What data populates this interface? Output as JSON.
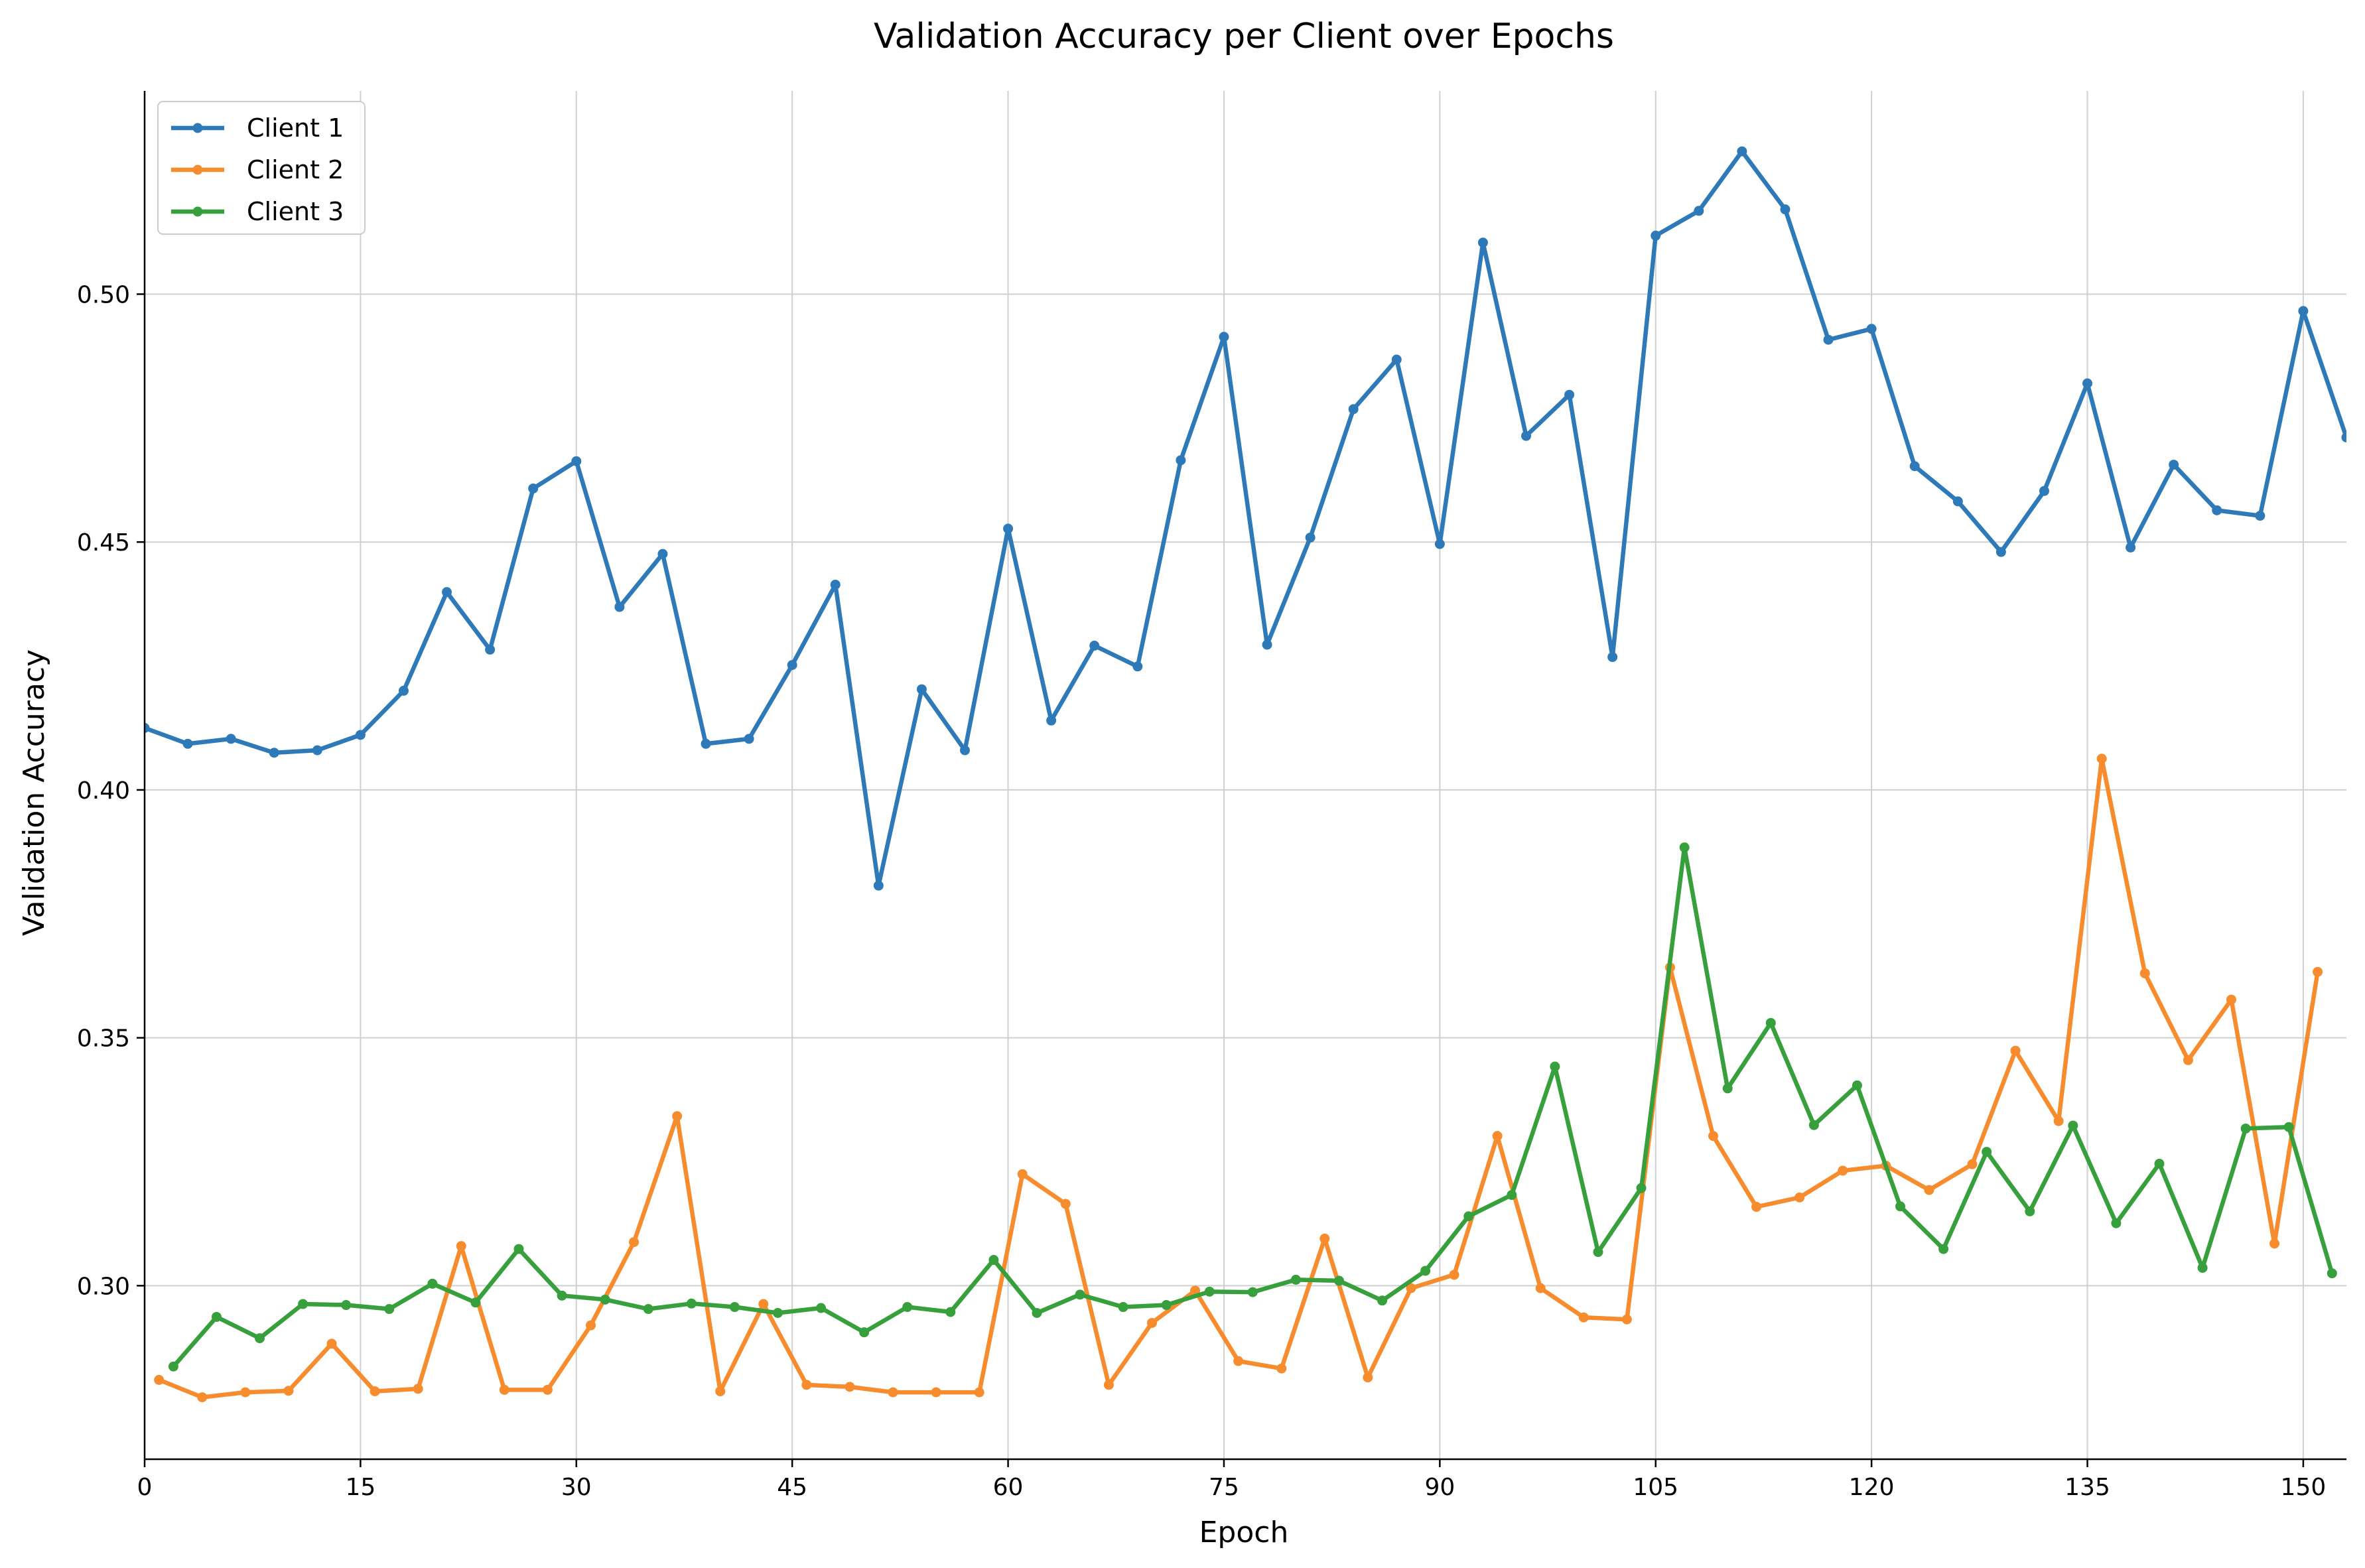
{
  "chart_data": {
    "type": "line",
    "title": "Validation Accuracy per Client over Epochs",
    "xlabel": "Epoch",
    "ylabel": "Validation Accuracy",
    "xlim": [
      0,
      153
    ],
    "ylim": [
      0.265,
      0.541
    ],
    "xticks": [
      0,
      15,
      30,
      45,
      60,
      75,
      90,
      105,
      120,
      135,
      150
    ],
    "yticks": [
      0.3,
      0.35,
      0.4,
      0.45,
      0.5
    ],
    "ytick_labels": [
      "0.30",
      "0.35",
      "0.40",
      "0.45",
      "0.50"
    ],
    "grid": true,
    "legend_position": "top-left",
    "series": [
      {
        "name": "Client 1",
        "color": "#2e7ab8",
        "x": [
          0,
          3,
          6,
          9,
          12,
          15,
          18,
          21,
          24,
          27,
          30,
          33,
          36,
          39,
          42,
          45,
          48,
          51,
          54,
          57,
          60,
          63,
          66,
          69,
          72,
          75,
          78,
          81,
          84,
          87,
          90,
          93,
          96,
          99,
          102,
          105,
          108,
          111,
          114,
          117,
          120,
          123,
          126,
          129,
          132,
          135,
          138,
          141,
          144,
          147,
          150,
          153
        ],
        "y": [
          0.4125,
          0.4093,
          0.4103,
          0.4075,
          0.408,
          0.4111,
          0.42,
          0.4399,
          0.4283,
          0.4608,
          0.4663,
          0.4369,
          0.4476,
          0.4093,
          0.4103,
          0.4252,
          0.4414,
          0.3807,
          0.4203,
          0.408,
          0.4527,
          0.414,
          0.4291,
          0.4249,
          0.4665,
          0.4914,
          0.4293,
          0.4509,
          0.4768,
          0.4868,
          0.4496,
          0.5104,
          0.4714,
          0.4797,
          0.4268,
          0.5118,
          0.5168,
          0.5288,
          0.5171,
          0.4908,
          0.493,
          0.4653,
          0.4582,
          0.448,
          0.4603,
          0.482,
          0.4489,
          0.4656,
          0.4564,
          0.4553,
          0.4966,
          0.4711
        ]
      },
      {
        "name": "Client 2",
        "color": "#f68c2d",
        "x": [
          1,
          4,
          7,
          10,
          13,
          16,
          19,
          22,
          25,
          28,
          31,
          34,
          37,
          40,
          43,
          46,
          49,
          52,
          55,
          58,
          61,
          64,
          67,
          70,
          73,
          76,
          79,
          82,
          85,
          88,
          91,
          94,
          97,
          100,
          103,
          106,
          109,
          112,
          115,
          118,
          121,
          124,
          127,
          130,
          133,
          136,
          139,
          142,
          145,
          148,
          151
        ],
        "y": [
          0.281,
          0.2775,
          0.2785,
          0.2788,
          0.2883,
          0.2787,
          0.2792,
          0.308,
          0.279,
          0.279,
          0.292,
          0.3088,
          0.3342,
          0.2787,
          0.2963,
          0.28,
          0.2796,
          0.2785,
          0.2785,
          0.2785,
          0.3225,
          0.3165,
          0.28,
          0.2925,
          0.299,
          0.2848,
          0.2833,
          0.3095,
          0.2815,
          0.2995,
          0.3022,
          0.3302,
          0.2995,
          0.2936,
          0.2932,
          0.3642,
          0.3302,
          0.3159,
          0.3178,
          0.3232,
          0.3242,
          0.3193,
          0.3245,
          0.3474,
          0.3332,
          0.4063,
          0.363,
          0.3455,
          0.3577,
          0.3085,
          0.3633
        ]
      },
      {
        "name": "Client 3",
        "color": "#37a03d",
        "x": [
          2,
          5,
          8,
          11,
          14,
          17,
          20,
          23,
          26,
          29,
          32,
          35,
          38,
          41,
          44,
          47,
          50,
          53,
          56,
          59,
          62,
          65,
          68,
          71,
          74,
          77,
          80,
          83,
          86,
          89,
          92,
          95,
          98,
          101,
          104,
          107,
          110,
          113,
          116,
          119,
          122,
          125,
          128,
          131,
          134,
          137,
          140,
          143,
          146,
          149,
          152
        ],
        "y": [
          0.2837,
          0.2937,
          0.2894,
          0.2963,
          0.2961,
          0.2953,
          0.3004,
          0.2966,
          0.3074,
          0.298,
          0.2972,
          0.2953,
          0.2964,
          0.2957,
          0.2945,
          0.2955,
          0.2906,
          0.2957,
          0.2947,
          0.3052,
          0.2945,
          0.2982,
          0.2957,
          0.2961,
          0.2988,
          0.2987,
          0.3012,
          0.301,
          0.297,
          0.303,
          0.314,
          0.3183,
          0.3442,
          0.3068,
          0.3197,
          0.3884,
          0.3398,
          0.353,
          0.3324,
          0.3404,
          0.316,
          0.3074,
          0.327,
          0.315,
          0.3323,
          0.3126,
          0.3246,
          0.3036,
          0.3317,
          0.332,
          0.3025
        ]
      }
    ]
  }
}
